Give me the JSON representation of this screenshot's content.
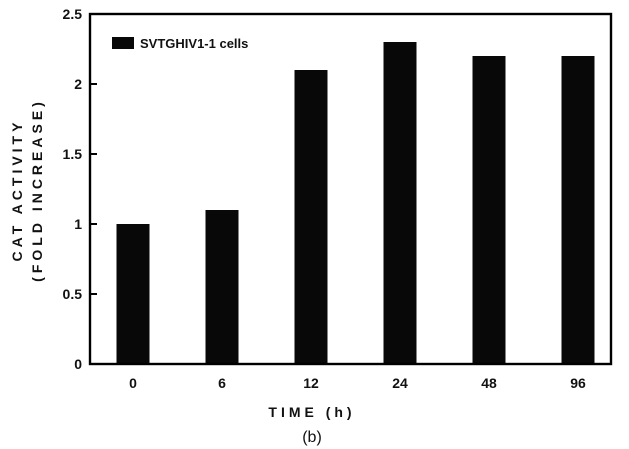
{
  "chart_data": {
    "type": "bar",
    "categories": [
      "0",
      "6",
      "12",
      "24",
      "48",
      "96"
    ],
    "series": [
      {
        "name": "SVTGHIV1-1 cells",
        "values": [
          1.0,
          1.1,
          2.1,
          2.3,
          2.2,
          2.2
        ]
      }
    ],
    "xlabel": "TIME (h)",
    "ylabel_lines": [
      "CAT ACTIVITY",
      "(FOLD INCREASE)"
    ],
    "ylim": [
      0,
      2.5
    ],
    "yticks": [
      "0",
      "0.5",
      "1",
      "1.5",
      "2",
      "2.5"
    ],
    "grid": false,
    "legend_position": "top-left",
    "bar_color": "#080808"
  },
  "caption": "(b)"
}
